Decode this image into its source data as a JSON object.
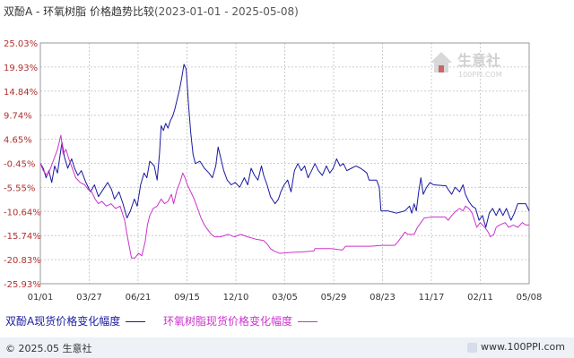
{
  "title": {
    "main": "双酚A - 环氧树脂 价格趋势比较",
    "range": "(2023-01-01 - 2025-05-08)"
  },
  "watermark": {
    "brand": "生意社",
    "url": "100PPI.COM",
    "icon": "house-logo-icon"
  },
  "footer": {
    "copyright": "© 2025.05 生意社",
    "site": "www.100PPI.com"
  },
  "colors": {
    "series1": "#1a1aa0",
    "series2": "#cc33cc",
    "axis_text": "#b03030",
    "grid": "#cccccc"
  },
  "chart_data": {
    "type": "line",
    "title": "双酚A - 环氧树脂 价格趋势比较",
    "xlabel": "",
    "ylabel": "",
    "x_ticks": [
      "01/01",
      "03/27",
      "06/21",
      "09/15",
      "12/10",
      "03/05",
      "05/29",
      "08/23",
      "11/17",
      "02/11",
      "05/08"
    ],
    "y_ticks": [
      "25.03%",
      "19.93%",
      "14.84%",
      "9.74%",
      "4.65%",
      "-0.45%",
      "-5.55%",
      "-10.64%",
      "-15.74%",
      "-20.83%",
      "-25.93%"
    ],
    "ylim": [
      -25.93,
      25.03
    ],
    "x_domain_days": [
      0,
      858
    ],
    "grid": true,
    "legend_position": "bottom",
    "series": [
      {
        "name": "双酚A现货价格变化幅度",
        "color": "#1a1aa0",
        "points": [
          [
            0,
            -0.45
          ],
          [
            5,
            -1.5
          ],
          [
            10,
            -3.5
          ],
          [
            15,
            -2.0
          ],
          [
            20,
            -4.5
          ],
          [
            25,
            -1.0
          ],
          [
            30,
            -2.5
          ],
          [
            38,
            4.0
          ],
          [
            42,
            1.0
          ],
          [
            48,
            -1.5
          ],
          [
            55,
            0.5
          ],
          [
            60,
            -1.5
          ],
          [
            66,
            -3.0
          ],
          [
            72,
            -2.0
          ],
          [
            80,
            -4.5
          ],
          [
            88,
            -6.5
          ],
          [
            95,
            -5.0
          ],
          [
            102,
            -7.5
          ],
          [
            110,
            -6.0
          ],
          [
            118,
            -4.5
          ],
          [
            125,
            -6.0
          ],
          [
            130,
            -8.0
          ],
          [
            138,
            -6.5
          ],
          [
            145,
            -9.0
          ],
          [
            152,
            -12.0
          ],
          [
            158,
            -10.5
          ],
          [
            165,
            -8.0
          ],
          [
            170,
            -9.5
          ],
          [
            176,
            -5.0
          ],
          [
            182,
            -2.5
          ],
          [
            187,
            -3.5
          ],
          [
            192,
            0.0
          ],
          [
            200,
            -1.0
          ],
          [
            205,
            -4.0
          ],
          [
            209,
            1.5
          ],
          [
            212,
            7.5
          ],
          [
            216,
            6.5
          ],
          [
            220,
            8.0
          ],
          [
            224,
            7.0
          ],
          [
            228,
            8.5
          ],
          [
            232,
            9.5
          ],
          [
            236,
            11.0
          ],
          [
            240,
            13.0
          ],
          [
            244,
            15.0
          ],
          [
            248,
            17.5
          ],
          [
            252,
            20.5
          ],
          [
            256,
            19.5
          ],
          [
            260,
            12.0
          ],
          [
            264,
            6.0
          ],
          [
            268,
            1.5
          ],
          [
            272,
            -0.5
          ],
          [
            280,
            0.0
          ],
          [
            288,
            -1.5
          ],
          [
            296,
            -2.5
          ],
          [
            302,
            -3.5
          ],
          [
            308,
            -1.0
          ],
          [
            312,
            3.0
          ],
          [
            316,
            1.0
          ],
          [
            322,
            -2.0
          ],
          [
            328,
            -4.0
          ],
          [
            335,
            -5.0
          ],
          [
            342,
            -4.5
          ],
          [
            350,
            -5.5
          ],
          [
            358,
            -3.5
          ],
          [
            364,
            -5.0
          ],
          [
            370,
            -1.5
          ],
          [
            376,
            -3.0
          ],
          [
            382,
            -4.0
          ],
          [
            388,
            -1.0
          ],
          [
            392,
            -3.0
          ],
          [
            398,
            -5.0
          ],
          [
            404,
            -7.5
          ],
          [
            412,
            -9.0
          ],
          [
            418,
            -8.0
          ],
          [
            422,
            -6.5
          ],
          [
            428,
            -5.0
          ],
          [
            434,
            -4.0
          ],
          [
            440,
            -6.5
          ],
          [
            446,
            -2.0
          ],
          [
            452,
            -0.5
          ],
          [
            458,
            -2.0
          ],
          [
            464,
            -1.0
          ],
          [
            470,
            -3.5
          ],
          [
            476,
            -2.0
          ],
          [
            482,
            -0.5
          ],
          [
            488,
            -2.0
          ],
          [
            495,
            -3.0
          ],
          [
            502,
            -1.0
          ],
          [
            508,
            -2.5
          ],
          [
            514,
            -1.5
          ],
          [
            520,
            0.5
          ],
          [
            526,
            -1.0
          ],
          [
            532,
            -0.5
          ],
          [
            538,
            -2.0
          ],
          [
            546,
            -1.5
          ],
          [
            554,
            -1.0
          ],
          [
            562,
            -1.5
          ],
          [
            568,
            -2.0
          ],
          [
            573,
            -2.5
          ],
          [
            577,
            -4.0
          ],
          [
            590,
            -4.0
          ],
          [
            595,
            -5.5
          ],
          [
            598,
            -10.5
          ],
          [
            610,
            -10.5
          ],
          [
            625,
            -11.0
          ],
          [
            640,
            -10.5
          ],
          [
            648,
            -9.5
          ],
          [
            652,
            -11.0
          ],
          [
            656,
            -9.0
          ],
          [
            660,
            -10.5
          ],
          [
            664,
            -6.5
          ],
          [
            668,
            -3.5
          ],
          [
            672,
            -7.0
          ],
          [
            678,
            -5.5
          ],
          [
            684,
            -4.5
          ],
          [
            690,
            -5.0
          ],
          [
            712,
            -5.2
          ],
          [
            716,
            -6.0
          ],
          [
            722,
            -7.0
          ],
          [
            728,
            -5.5
          ],
          [
            736,
            -6.5
          ],
          [
            742,
            -5.0
          ],
          [
            746,
            -7.0
          ],
          [
            752,
            -8.5
          ],
          [
            758,
            -9.5
          ],
          [
            764,
            -10.0
          ],
          [
            770,
            -12.5
          ],
          [
            776,
            -11.5
          ],
          [
            782,
            -14.0
          ],
          [
            788,
            -11.0
          ],
          [
            794,
            -10.0
          ],
          [
            800,
            -11.5
          ],
          [
            806,
            -10.0
          ],
          [
            812,
            -11.5
          ],
          [
            818,
            -10.0
          ],
          [
            826,
            -12.5
          ],
          [
            832,
            -11.0
          ],
          [
            838,
            -9.0
          ],
          [
            852,
            -9.0
          ],
          [
            858,
            -10.5
          ]
        ]
      },
      {
        "name": "环氧树脂现货价格变化幅度",
        "color": "#cc33cc",
        "points": [
          [
            0,
            -0.45
          ],
          [
            5,
            -2.0
          ],
          [
            12,
            -3.0
          ],
          [
            18,
            -1.5
          ],
          [
            24,
            0.5
          ],
          [
            30,
            2.5
          ],
          [
            36,
            5.5
          ],
          [
            40,
            1.5
          ],
          [
            45,
            2.5
          ],
          [
            50,
            0.5
          ],
          [
            56,
            -1.5
          ],
          [
            62,
            -3.5
          ],
          [
            70,
            -4.5
          ],
          [
            78,
            -5.0
          ],
          [
            84,
            -6.0
          ],
          [
            90,
            -6.5
          ],
          [
            96,
            -8.0
          ],
          [
            102,
            -9.0
          ],
          [
            108,
            -8.5
          ],
          [
            116,
            -9.5
          ],
          [
            124,
            -9.0
          ],
          [
            132,
            -10.0
          ],
          [
            140,
            -9.5
          ],
          [
            148,
            -12.5
          ],
          [
            152,
            -15.5
          ],
          [
            156,
            -18.0
          ],
          [
            160,
            -20.5
          ],
          [
            166,
            -20.5
          ],
          [
            172,
            -19.5
          ],
          [
            178,
            -20.0
          ],
          [
            184,
            -17.0
          ],
          [
            188,
            -13.5
          ],
          [
            192,
            -11.5
          ],
          [
            198,
            -10.0
          ],
          [
            205,
            -9.5
          ],
          [
            212,
            -8.0
          ],
          [
            218,
            -9.0
          ],
          [
            224,
            -8.5
          ],
          [
            230,
            -7.0
          ],
          [
            234,
            -9.0
          ],
          [
            240,
            -6.0
          ],
          [
            245,
            -4.5
          ],
          [
            250,
            -2.5
          ],
          [
            254,
            -3.5
          ],
          [
            258,
            -5.0
          ],
          [
            264,
            -6.5
          ],
          [
            270,
            -8.0
          ],
          [
            276,
            -10.0
          ],
          [
            282,
            -12.0
          ],
          [
            288,
            -13.5
          ],
          [
            294,
            -14.5
          ],
          [
            300,
            -15.5
          ],
          [
            306,
            -16.0
          ],
          [
            316,
            -16.0
          ],
          [
            330,
            -15.5
          ],
          [
            340,
            -16.0
          ],
          [
            352,
            -15.5
          ],
          [
            364,
            -16.0
          ],
          [
            378,
            -16.5
          ],
          [
            392,
            -16.8
          ],
          [
            398,
            -17.5
          ],
          [
            404,
            -18.5
          ],
          [
            410,
            -19.0
          ],
          [
            420,
            -19.5
          ],
          [
            440,
            -19.3
          ],
          [
            460,
            -19.2
          ],
          [
            480,
            -19.0
          ],
          [
            482,
            -18.5
          ],
          [
            510,
            -18.5
          ],
          [
            530,
            -18.8
          ],
          [
            536,
            -18.0
          ],
          [
            560,
            -18.0
          ],
          [
            580,
            -18.0
          ],
          [
            600,
            -17.8
          ],
          [
            622,
            -17.8
          ],
          [
            628,
            -17.0
          ],
          [
            634,
            -16.0
          ],
          [
            640,
            -15.0
          ],
          [
            645,
            -15.5
          ],
          [
            656,
            -15.5
          ],
          [
            662,
            -14.0
          ],
          [
            668,
            -13.0
          ],
          [
            674,
            -12.0
          ],
          [
            690,
            -11.8
          ],
          [
            710,
            -11.8
          ],
          [
            716,
            -12.5
          ],
          [
            722,
            -11.5
          ],
          [
            730,
            -10.5
          ],
          [
            736,
            -10.0
          ],
          [
            742,
            -10.5
          ],
          [
            746,
            -9.5
          ],
          [
            752,
            -10.0
          ],
          [
            758,
            -11.0
          ],
          [
            762,
            -12.5
          ],
          [
            766,
            -14.0
          ],
          [
            772,
            -13.0
          ],
          [
            780,
            -14.0
          ],
          [
            786,
            -15.0
          ],
          [
            790,
            -16.0
          ],
          [
            796,
            -15.5
          ],
          [
            800,
            -14.0
          ],
          [
            806,
            -13.5
          ],
          [
            816,
            -13.0
          ],
          [
            822,
            -14.0
          ],
          [
            830,
            -13.5
          ],
          [
            838,
            -14.0
          ],
          [
            846,
            -13.0
          ],
          [
            852,
            -13.5
          ],
          [
            858,
            -13.5
          ]
        ]
      }
    ]
  }
}
